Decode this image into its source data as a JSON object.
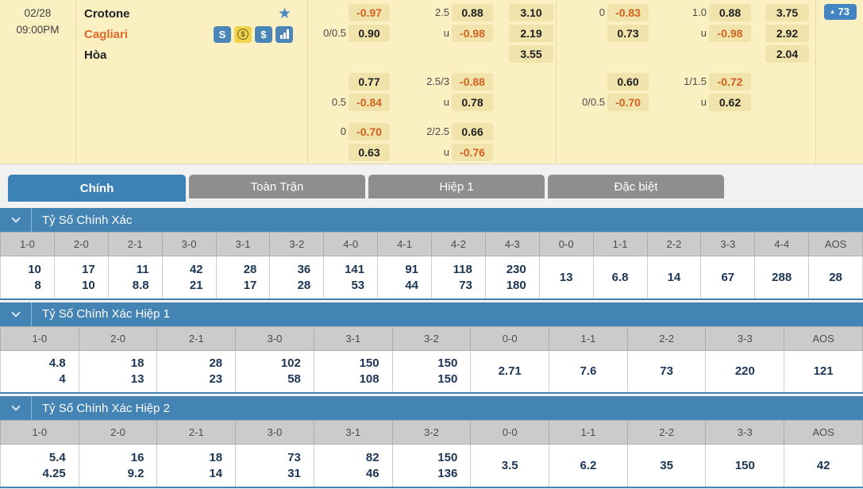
{
  "match": {
    "date": "02/28",
    "time": "09:00PM",
    "home_team": "Crotone",
    "away_team": "Cagliari",
    "draw_label": "Hòa",
    "favorite_star": "★",
    "team_icons": [
      "saba-icon",
      "coin-dollar-icon",
      "dollar-icon",
      "bar-chart-icon"
    ],
    "live_badge": {
      "arrow": "▲",
      "count": "73"
    }
  },
  "odds_panel": {
    "groups": [
      {
        "name": "full-time",
        "blocks": [
          {
            "rows": [
              {
                "hcp_line": "",
                "hcp": "-0.97",
                "ou_line": "2.5",
                "ou": "0.88",
                "x12": "3.10"
              },
              {
                "hcp_line": "0/0.5",
                "hcp": "0.90",
                "ou_line": "u",
                "ou": "-0.98",
                "x12": "2.19"
              },
              {
                "hcp_line": "",
                "hcp": "",
                "ou_line": "",
                "ou": "",
                "x12": "3.55"
              }
            ]
          },
          {
            "rows": [
              {
                "hcp_line": "",
                "hcp": "0.77",
                "ou_line": "2.5/3",
                "ou": "-0.88",
                "x12": ""
              },
              {
                "hcp_line": "0.5",
                "hcp": "-0.84",
                "ou_line": "u",
                "ou": "0.78",
                "x12": ""
              }
            ]
          },
          {
            "rows": [
              {
                "hcp_line": "0",
                "hcp": "-0.70",
                "ou_line": "2/2.5",
                "ou": "0.66",
                "x12": ""
              },
              {
                "hcp_line": "",
                "hcp": "0.63",
                "ou_line": "u",
                "ou": "-0.76",
                "x12": ""
              }
            ]
          }
        ]
      },
      {
        "name": "first-half",
        "blocks": [
          {
            "rows": [
              {
                "hcp_line": "0",
                "hcp": "-0.83",
                "ou_line": "1.0",
                "ou": "0.88",
                "x12": "3.75"
              },
              {
                "hcp_line": "",
                "hcp": "0.73",
                "ou_line": "u",
                "ou": "-0.98",
                "x12": "2.92"
              },
              {
                "hcp_line": "",
                "hcp": "",
                "ou_line": "",
                "ou": "",
                "x12": "2.04"
              }
            ]
          },
          {
            "rows": [
              {
                "hcp_line": "",
                "hcp": "0.60",
                "ou_line": "1/1.5",
                "ou": "-0.72",
                "x12": ""
              },
              {
                "hcp_line": "0/0.5",
                "hcp": "-0.70",
                "ou_line": "u",
                "ou": "0.62",
                "x12": ""
              }
            ]
          }
        ]
      }
    ]
  },
  "tabs": [
    {
      "label": "Chính",
      "active": true
    },
    {
      "label": "Toàn Trận",
      "active": false
    },
    {
      "label": "Hiệp 1",
      "active": false
    },
    {
      "label": "Đặc biệt",
      "active": false
    }
  ],
  "score_tables": [
    {
      "title": "Tỷ Số Chính Xác",
      "columns": [
        {
          "label": "1-0",
          "home": "10",
          "away": "8"
        },
        {
          "label": "2-0",
          "home": "17",
          "away": "10"
        },
        {
          "label": "2-1",
          "home": "11",
          "away": "8.8"
        },
        {
          "label": "3-0",
          "home": "42",
          "away": "21"
        },
        {
          "label": "3-1",
          "home": "28",
          "away": "17"
        },
        {
          "label": "3-2",
          "home": "36",
          "away": "28"
        },
        {
          "label": "4-0",
          "home": "141",
          "away": "53"
        },
        {
          "label": "4-1",
          "home": "91",
          "away": "44"
        },
        {
          "label": "4-2",
          "home": "118",
          "away": "73"
        },
        {
          "label": "4-3",
          "home": "230",
          "away": "180"
        },
        {
          "label": "0-0",
          "single": "13"
        },
        {
          "label": "1-1",
          "single": "6.8"
        },
        {
          "label": "2-2",
          "single": "14"
        },
        {
          "label": "3-3",
          "single": "67"
        },
        {
          "label": "4-4",
          "single": "288"
        },
        {
          "label": "AOS",
          "single": "28"
        }
      ]
    },
    {
      "title": "Tỷ Số Chính Xác Hiệp 1",
      "columns": [
        {
          "label": "1-0",
          "home": "4.8",
          "away": "4"
        },
        {
          "label": "2-0",
          "home": "18",
          "away": "13"
        },
        {
          "label": "2-1",
          "home": "28",
          "away": "23"
        },
        {
          "label": "3-0",
          "home": "102",
          "away": "58"
        },
        {
          "label": "3-1",
          "home": "150",
          "away": "108"
        },
        {
          "label": "3-2",
          "home": "150",
          "away": "150"
        },
        {
          "label": "0-0",
          "single": "2.71"
        },
        {
          "label": "1-1",
          "single": "7.6"
        },
        {
          "label": "2-2",
          "single": "73"
        },
        {
          "label": "3-3",
          "single": "220"
        },
        {
          "label": "AOS",
          "single": "121"
        }
      ]
    },
    {
      "title": "Tỷ Số Chính Xác Hiệp 2",
      "columns": [
        {
          "label": "1-0",
          "home": "5.4",
          "away": "4.25"
        },
        {
          "label": "2-0",
          "home": "16",
          "away": "9.2"
        },
        {
          "label": "2-1",
          "home": "18",
          "away": "14"
        },
        {
          "label": "3-0",
          "home": "73",
          "away": "31"
        },
        {
          "label": "3-1",
          "home": "82",
          "away": "46"
        },
        {
          "label": "3-2",
          "home": "150",
          "away": "136"
        },
        {
          "label": "0-0",
          "single": "3.5"
        },
        {
          "label": "1-1",
          "single": "6.2"
        },
        {
          "label": "2-2",
          "single": "35"
        },
        {
          "label": "3-3",
          "single": "150"
        },
        {
          "label": "AOS",
          "single": "42"
        }
      ]
    }
  ],
  "colors": {
    "panel_bg": "#FBF0C1",
    "odds_cell_bg": "#F0E4AC",
    "negative_odds": "#D2621E",
    "accent_blue": "#4484B4",
    "inactive_tab": "#8E8E8E",
    "table_header_bg": "#CBCBCB",
    "table_value_text": "#1B3555",
    "away_team_text": "#E06A2B"
  }
}
